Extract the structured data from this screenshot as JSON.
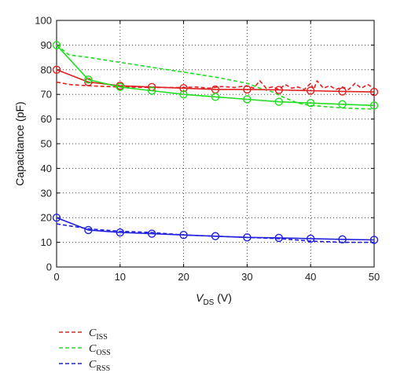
{
  "chart_data": {
    "type": "line",
    "title": "",
    "xlabel": {
      "main": "V",
      "sub": "DS",
      "unit": " (V)"
    },
    "ylabel": "Capacitance (pF)",
    "xlim": [
      0,
      50
    ],
    "ylim": [
      0,
      100
    ],
    "xticks": [
      0,
      10,
      20,
      30,
      40,
      50
    ],
    "yticks": [
      0,
      10,
      20,
      30,
      40,
      50,
      60,
      70,
      80,
      90,
      100
    ],
    "grid": true,
    "grid_style": "dotted",
    "legend_position": "below",
    "marker_x": [
      0,
      5,
      10,
      15,
      20,
      25,
      30,
      35,
      40,
      45,
      50
    ],
    "series": [
      {
        "name": "C",
        "sub": "ISS",
        "color": "#e02020",
        "style": "dashed",
        "x": [
          0,
          2,
          5,
          8,
          10,
          15,
          20,
          22,
          24,
          26,
          28,
          30,
          31,
          32,
          33,
          34,
          35,
          36,
          37,
          38,
          39,
          40,
          40.5,
          41,
          42,
          43,
          44,
          45,
          46,
          47,
          48,
          49,
          50
        ],
        "y": [
          75,
          74,
          73.5,
          73.2,
          73,
          72.8,
          72.8,
          73,
          72.5,
          73.2,
          72.8,
          73.5,
          72.5,
          75.5,
          72.5,
          73,
          72,
          74,
          72.5,
          73,
          72,
          74.5,
          72,
          75.5,
          72.5,
          73.5,
          72,
          73,
          72,
          74.5,
          72.5,
          74,
          72.5
        ]
      },
      {
        "name": "C",
        "sub": "OSS",
        "color": "#22dd22",
        "style": "dashed",
        "x": [
          0,
          2,
          5,
          10,
          15,
          20,
          25,
          30,
          32,
          34,
          36,
          38,
          40,
          45,
          50
        ],
        "y": [
          90,
          86,
          85,
          83,
          81,
          79,
          77,
          74.5,
          72.5,
          71,
          68.5,
          66.5,
          65.5,
          64.5,
          64
        ]
      },
      {
        "name": "C",
        "sub": "RSS",
        "color": "#2020dd",
        "style": "dashed",
        "x": [
          0,
          5,
          10,
          15,
          20,
          25,
          30,
          35,
          40,
          45,
          50
        ],
        "y": [
          17.5,
          15.5,
          14.5,
          14,
          13,
          12.5,
          12,
          11.5,
          10.5,
          10,
          10
        ]
      },
      {
        "name": "C",
        "sub": "ISS",
        "color": "#e02020",
        "style": "solid-markers",
        "x": [
          0,
          5,
          10,
          15,
          20,
          25,
          30,
          35,
          40,
          45,
          50
        ],
        "y": [
          80,
          75,
          73.5,
          73,
          72.5,
          72,
          72,
          71.8,
          71.5,
          71.2,
          71
        ]
      },
      {
        "name": "C",
        "sub": "OSS",
        "color": "#22dd22",
        "style": "solid-markers",
        "x": [
          0,
          5,
          10,
          15,
          20,
          25,
          30,
          35,
          40,
          45,
          50
        ],
        "y": [
          90,
          76,
          73,
          71.5,
          70,
          69,
          68,
          67,
          66.5,
          66,
          65.5
        ]
      },
      {
        "name": "C",
        "sub": "RSS",
        "color": "#2020dd",
        "style": "solid-markers",
        "x": [
          0,
          5,
          10,
          15,
          20,
          25,
          30,
          35,
          40,
          45,
          50
        ],
        "y": [
          20,
          15,
          14,
          13.5,
          13,
          12.5,
          12,
          11.8,
          11.5,
          11.2,
          11
        ]
      }
    ],
    "legend": [
      {
        "main": "C",
        "sub": "ISS",
        "color": "#e02020"
      },
      {
        "main": "C",
        "sub": "OSS",
        "color": "#22dd22"
      },
      {
        "main": "C",
        "sub": "RSS",
        "color": "#2020dd"
      }
    ]
  }
}
